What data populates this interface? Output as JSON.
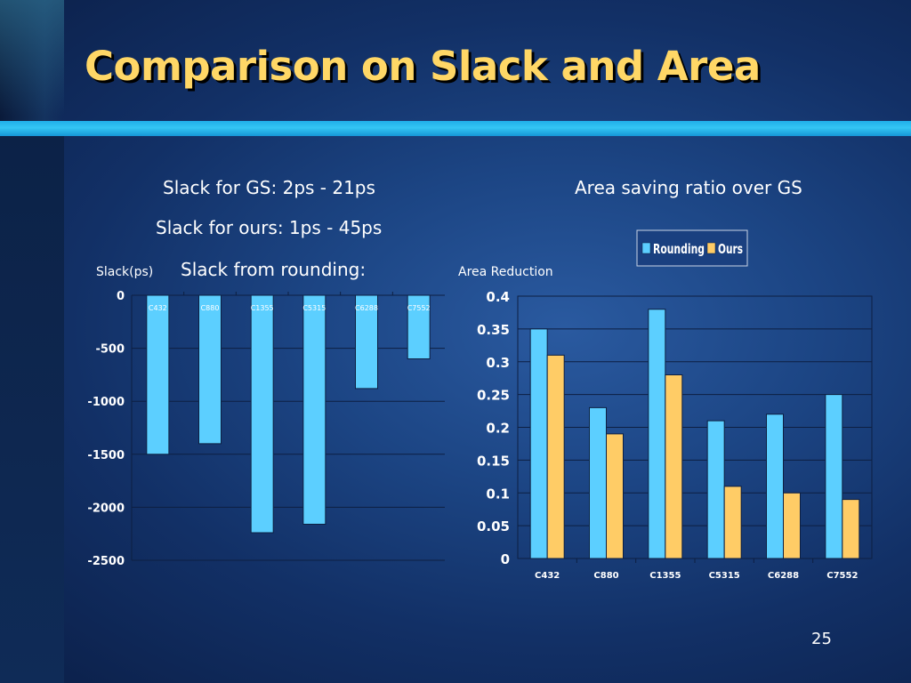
{
  "slide": {
    "title": "Comparison on Slack and Area",
    "notes": [
      "Slack for GS: 2ps - 21ps",
      "Slack for ours: 1ps - 45ps",
      "Slack from rounding:",
      "Area saving ratio over GS"
    ],
    "page_number": "25"
  },
  "colors": {
    "rounding": "#5ccfff",
    "ours": "#ffcc66",
    "title": "#ffd766",
    "accent_bar": "#28b8ee"
  },
  "chart_data": [
    {
      "type": "bar",
      "ylabel": "Slack(ps)",
      "xlabel": "",
      "title": "",
      "categories": [
        "C432",
        "C880",
        "C1355",
        "C5315",
        "C6288",
        "C7552"
      ],
      "series": [
        {
          "values": [
            -1500,
            -1400,
            -2240,
            -2160,
            -880,
            -600
          ]
        }
      ],
      "yticks": [
        "0",
        "-500",
        "-1000",
        "-1500",
        "-2000",
        "-2500"
      ],
      "ylim": [
        -2500,
        0
      ],
      "grid": true,
      "legend": "none"
    },
    {
      "type": "bar",
      "ylabel": "Area Reduction",
      "xlabel": "",
      "title": "",
      "categories": [
        "C432",
        "C880",
        "C1355",
        "C5315",
        "C6288",
        "C7552"
      ],
      "series": [
        {
          "name": "Rounding",
          "values": [
            0.35,
            0.23,
            0.38,
            0.21,
            0.22,
            0.25
          ]
        },
        {
          "name": "Ours",
          "values": [
            0.31,
            0.19,
            0.28,
            0.11,
            0.1,
            0.09
          ]
        }
      ],
      "yticks": [
        "0.4",
        "0.35",
        "0.3",
        "0.25",
        "0.2",
        "0.15",
        "0.1",
        "0.05",
        "0"
      ],
      "ylim": [
        0,
        0.4
      ],
      "grid": true,
      "legend": "top-right"
    }
  ]
}
